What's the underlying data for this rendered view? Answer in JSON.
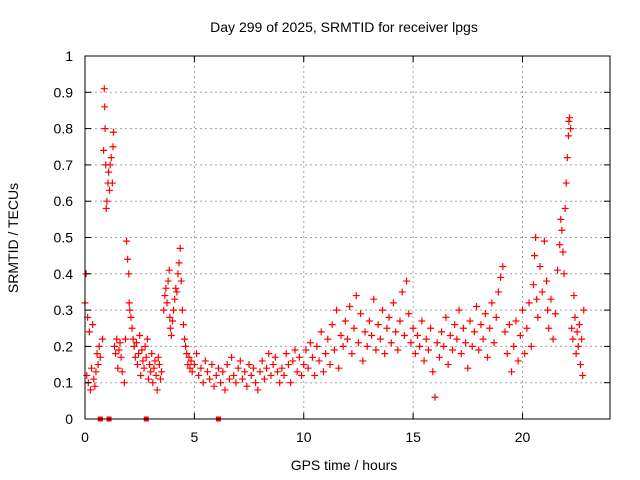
{
  "chart_data": {
    "type": "scatter",
    "title": "Day 299 of 2025, SRMTID for receiver lpgs",
    "xlabel": "GPS time / hours",
    "ylabel": "SRMTID / TECUs",
    "xlim": [
      0,
      24
    ],
    "ylim": [
      0,
      1
    ],
    "xticks": [
      0,
      5,
      10,
      15,
      20
    ],
    "xtick_labels": [
      "0",
      "5",
      "10",
      "15",
      "20"
    ],
    "yticks": [
      0,
      0.1,
      0.2,
      0.3,
      0.4,
      0.5,
      0.6,
      0.7,
      0.8,
      0.9,
      1
    ],
    "ytick_labels": [
      "0",
      "0.1",
      "0.2",
      "0.3",
      "0.4",
      "0.5",
      "0.6",
      "0.7",
      "0.8",
      "0.9",
      "1"
    ],
    "grid": true,
    "marker": "plus",
    "color": "#ff0000",
    "series": [
      {
        "name": "SRMTID",
        "points": [
          [
            0.0,
            0.32
          ],
          [
            0.05,
            0.4
          ],
          [
            0.08,
            0.12
          ],
          [
            0.12,
            0.28
          ],
          [
            0.15,
            0.1
          ],
          [
            0.2,
            0.24
          ],
          [
            0.25,
            0.08
          ],
          [
            0.3,
            0.14
          ],
          [
            0.35,
            0.26
          ],
          [
            0.4,
            0.11
          ],
          [
            0.45,
            0.09
          ],
          [
            0.5,
            0.13
          ],
          [
            0.55,
            0.18
          ],
          [
            0.6,
            0.15
          ],
          [
            0.65,
            0.2
          ],
          [
            0.7,
            0.17
          ],
          [
            0.8,
            0.22
          ],
          [
            0.85,
            0.74
          ],
          [
            0.88,
            0.91
          ],
          [
            0.9,
            0.86
          ],
          [
            0.92,
            0.8
          ],
          [
            0.95,
            0.7
          ],
          [
            0.97,
            0.58
          ],
          [
            1.0,
            0.6
          ],
          [
            1.05,
            0.65
          ],
          [
            1.08,
            0.68
          ],
          [
            1.12,
            0.63
          ],
          [
            1.15,
            0.7
          ],
          [
            1.2,
            0.72
          ],
          [
            1.25,
            0.65
          ],
          [
            1.28,
            0.75
          ],
          [
            1.3,
            0.79
          ],
          [
            1.35,
            0.2
          ],
          [
            1.4,
            0.18
          ],
          [
            1.45,
            0.22
          ],
          [
            1.5,
            0.14
          ],
          [
            1.55,
            0.19
          ],
          [
            1.6,
            0.21
          ],
          [
            1.65,
            0.17
          ],
          [
            1.7,
            0.13
          ],
          [
            1.8,
            0.1
          ],
          [
            1.85,
            0.22
          ],
          [
            1.9,
            0.49
          ],
          [
            1.95,
            0.44
          ],
          [
            2.0,
            0.4
          ],
          [
            2.02,
            0.32
          ],
          [
            2.05,
            0.3
          ],
          [
            2.1,
            0.28
          ],
          [
            2.15,
            0.25
          ],
          [
            2.2,
            0.22
          ],
          [
            2.25,
            0.2
          ],
          [
            2.3,
            0.17
          ],
          [
            2.35,
            0.21
          ],
          [
            2.4,
            0.15
          ],
          [
            2.45,
            0.18
          ],
          [
            2.5,
            0.23
          ],
          [
            2.55,
            0.12
          ],
          [
            2.6,
            0.19
          ],
          [
            2.65,
            0.16
          ],
          [
            2.7,
            0.14
          ],
          [
            2.75,
            0.2
          ],
          [
            2.8,
            0.17
          ],
          [
            2.85,
            0.22
          ],
          [
            2.9,
            0.11
          ],
          [
            2.95,
            0.15
          ],
          [
            3.0,
            0.13
          ],
          [
            3.05,
            0.18
          ],
          [
            3.1,
            0.1
          ],
          [
            3.15,
            0.14
          ],
          [
            3.2,
            0.16
          ],
          [
            3.25,
            0.12
          ],
          [
            3.3,
            0.08
          ],
          [
            3.35,
            0.17
          ],
          [
            3.4,
            0.15
          ],
          [
            3.45,
            0.11
          ],
          [
            3.5,
            0.13
          ],
          [
            3.6,
            0.3
          ],
          [
            3.65,
            0.34
          ],
          [
            3.7,
            0.36
          ],
          [
            3.75,
            0.32
          ],
          [
            3.8,
            0.38
          ],
          [
            3.85,
            0.41
          ],
          [
            3.88,
            0.28
          ],
          [
            3.9,
            0.25
          ],
          [
            3.95,
            0.23
          ],
          [
            4.0,
            0.27
          ],
          [
            4.05,
            0.3
          ],
          [
            4.1,
            0.33
          ],
          [
            4.15,
            0.36
          ],
          [
            4.2,
            0.35
          ],
          [
            4.25,
            0.4
          ],
          [
            4.3,
            0.43
          ],
          [
            4.35,
            0.47
          ],
          [
            4.4,
            0.38
          ],
          [
            4.45,
            0.3
          ],
          [
            4.5,
            0.26
          ],
          [
            4.55,
            0.22
          ],
          [
            4.6,
            0.2
          ],
          [
            4.65,
            0.18
          ],
          [
            4.7,
            0.15
          ],
          [
            4.75,
            0.17
          ],
          [
            4.8,
            0.14
          ],
          [
            4.85,
            0.16
          ],
          [
            4.9,
            0.13
          ],
          [
            5.0,
            0.15
          ],
          [
            5.1,
            0.18
          ],
          [
            5.2,
            0.12
          ],
          [
            5.3,
            0.14
          ],
          [
            5.4,
            0.1
          ],
          [
            5.5,
            0.16
          ],
          [
            5.6,
            0.13
          ],
          [
            5.7,
            0.11
          ],
          [
            5.8,
            0.15
          ],
          [
            5.9,
            0.09
          ],
          [
            6.0,
            0.12
          ],
          [
            6.1,
            0.14
          ],
          [
            6.2,
            0.1
          ],
          [
            6.3,
            0.13
          ],
          [
            6.4,
            0.08
          ],
          [
            6.5,
            0.15
          ],
          [
            6.6,
            0.11
          ],
          [
            6.7,
            0.17
          ],
          [
            6.8,
            0.12
          ],
          [
            6.9,
            0.1
          ],
          [
            7.0,
            0.14
          ],
          [
            7.1,
            0.16
          ],
          [
            7.2,
            0.11
          ],
          [
            7.3,
            0.13
          ],
          [
            7.4,
            0.09
          ],
          [
            7.5,
            0.15
          ],
          [
            7.6,
            0.12
          ],
          [
            7.7,
            0.14
          ],
          [
            7.8,
            0.1
          ],
          [
            7.9,
            0.08
          ],
          [
            8.0,
            0.13
          ],
          [
            8.1,
            0.16
          ],
          [
            8.2,
            0.11
          ],
          [
            8.3,
            0.14
          ],
          [
            8.4,
            0.18
          ],
          [
            8.5,
            0.12
          ],
          [
            8.6,
            0.15
          ],
          [
            8.7,
            0.17
          ],
          [
            8.8,
            0.13
          ],
          [
            8.9,
            0.1
          ],
          [
            9.0,
            0.14
          ],
          [
            9.1,
            0.12
          ],
          [
            9.2,
            0.18
          ],
          [
            9.3,
            0.15
          ],
          [
            9.4,
            0.1
          ],
          [
            9.5,
            0.16
          ],
          [
            9.6,
            0.19
          ],
          [
            9.7,
            0.13
          ],
          [
            9.8,
            0.17
          ],
          [
            9.9,
            0.12
          ],
          [
            10.0,
            0.15
          ],
          [
            10.1,
            0.19
          ],
          [
            10.2,
            0.14
          ],
          [
            10.3,
            0.21
          ],
          [
            10.4,
            0.17
          ],
          [
            10.5,
            0.12
          ],
          [
            10.6,
            0.2
          ],
          [
            10.7,
            0.16
          ],
          [
            10.8,
            0.24
          ],
          [
            10.9,
            0.13
          ],
          [
            11.0,
            0.18
          ],
          [
            11.1,
            0.22
          ],
          [
            11.2,
            0.15
          ],
          [
            11.3,
            0.26
          ],
          [
            11.4,
            0.19
          ],
          [
            11.5,
            0.3
          ],
          [
            11.6,
            0.14
          ],
          [
            11.7,
            0.23
          ],
          [
            11.8,
            0.2
          ],
          [
            11.9,
            0.27
          ],
          [
            12.0,
            0.22
          ],
          [
            12.1,
            0.31
          ],
          [
            12.2,
            0.18
          ],
          [
            12.3,
            0.25
          ],
          [
            12.4,
            0.34
          ],
          [
            12.5,
            0.21
          ],
          [
            12.6,
            0.29
          ],
          [
            12.7,
            0.16
          ],
          [
            12.8,
            0.24
          ],
          [
            12.9,
            0.2
          ],
          [
            13.0,
            0.27
          ],
          [
            13.1,
            0.23
          ],
          [
            13.2,
            0.33
          ],
          [
            13.3,
            0.19
          ],
          [
            13.4,
            0.26
          ],
          [
            13.5,
            0.22
          ],
          [
            13.6,
            0.3
          ],
          [
            13.7,
            0.18
          ],
          [
            13.8,
            0.25
          ],
          [
            13.9,
            0.28
          ],
          [
            14.0,
            0.21
          ],
          [
            14.1,
            0.32
          ],
          [
            14.2,
            0.24
          ],
          [
            14.3,
            0.19
          ],
          [
            14.4,
            0.27
          ],
          [
            14.5,
            0.35
          ],
          [
            14.6,
            0.23
          ],
          [
            14.7,
            0.38
          ],
          [
            14.8,
            0.29
          ],
          [
            14.9,
            0.21
          ],
          [
            15.0,
            0.25
          ],
          [
            15.1,
            0.18
          ],
          [
            15.2,
            0.23
          ],
          [
            15.3,
            0.2
          ],
          [
            15.4,
            0.27
          ],
          [
            15.5,
            0.16
          ],
          [
            15.6,
            0.22
          ],
          [
            15.7,
            0.19
          ],
          [
            15.8,
            0.25
          ],
          [
            15.9,
            0.13
          ],
          [
            16.0,
            0.06
          ],
          [
            16.1,
            0.21
          ],
          [
            16.2,
            0.17
          ],
          [
            16.3,
            0.24
          ],
          [
            16.4,
            0.2
          ],
          [
            16.5,
            0.28
          ],
          [
            16.6,
            0.15
          ],
          [
            16.7,
            0.23
          ],
          [
            16.8,
            0.19
          ],
          [
            16.9,
            0.26
          ],
          [
            17.0,
            0.22
          ],
          [
            17.1,
            0.3
          ],
          [
            17.2,
            0.18
          ],
          [
            17.3,
            0.25
          ],
          [
            17.4,
            0.21
          ],
          [
            17.5,
            0.14
          ],
          [
            17.6,
            0.27
          ],
          [
            17.7,
            0.2
          ],
          [
            17.8,
            0.24
          ],
          [
            17.9,
            0.31
          ],
          [
            18.0,
            0.19
          ],
          [
            18.1,
            0.26
          ],
          [
            18.2,
            0.22
          ],
          [
            18.3,
            0.29
          ],
          [
            18.4,
            0.17
          ],
          [
            18.5,
            0.25
          ],
          [
            18.6,
            0.32
          ],
          [
            18.7,
            0.21
          ],
          [
            18.8,
            0.28
          ],
          [
            18.9,
            0.35
          ],
          [
            19.0,
            0.39
          ],
          [
            19.1,
            0.42
          ],
          [
            19.2,
            0.24
          ],
          [
            19.3,
            0.18
          ],
          [
            19.4,
            0.26
          ],
          [
            19.5,
            0.13
          ],
          [
            19.6,
            0.2
          ],
          [
            19.7,
            0.27
          ],
          [
            19.8,
            0.16
          ],
          [
            19.9,
            0.23
          ],
          [
            20.0,
            0.3
          ],
          [
            20.1,
            0.18
          ],
          [
            20.2,
            0.25
          ],
          [
            20.3,
            0.32
          ],
          [
            20.4,
            0.2
          ],
          [
            20.5,
            0.37
          ],
          [
            20.55,
            0.45
          ],
          [
            20.6,
            0.5
          ],
          [
            20.65,
            0.33
          ],
          [
            20.7,
            0.28
          ],
          [
            20.8,
            0.42
          ],
          [
            20.9,
            0.35
          ],
          [
            21.0,
            0.49
          ],
          [
            21.1,
            0.38
          ],
          [
            21.15,
            0.3
          ],
          [
            21.2,
            0.25
          ],
          [
            21.3,
            0.33
          ],
          [
            21.4,
            0.22
          ],
          [
            21.5,
            0.29
          ],
          [
            21.6,
            0.41
          ],
          [
            21.7,
            0.48
          ],
          [
            21.75,
            0.55
          ],
          [
            21.8,
            0.52
          ],
          [
            21.85,
            0.46
          ],
          [
            21.9,
            0.4
          ],
          [
            21.95,
            0.58
          ],
          [
            22.0,
            0.65
          ],
          [
            22.05,
            0.72
          ],
          [
            22.1,
            0.78
          ],
          [
            22.12,
            0.82
          ],
          [
            22.15,
            0.83
          ],
          [
            22.2,
            0.8
          ],
          [
            22.25,
            0.25
          ],
          [
            22.3,
            0.22
          ],
          [
            22.35,
            0.34
          ],
          [
            22.4,
            0.28
          ],
          [
            22.45,
            0.18
          ],
          [
            22.5,
            0.24
          ],
          [
            22.55,
            0.2
          ],
          [
            22.6,
            0.26
          ],
          [
            22.65,
            0.15
          ],
          [
            22.7,
            0.22
          ],
          [
            22.75,
            0.12
          ],
          [
            22.8,
            0.3
          ]
        ]
      }
    ],
    "zero_markers_x": [
      0.7,
      1.1,
      2.8,
      6.1
    ]
  }
}
